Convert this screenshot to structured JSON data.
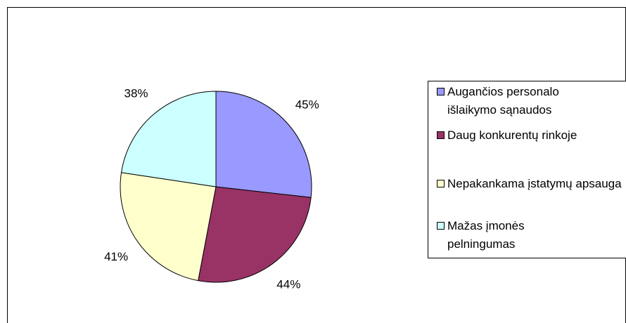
{
  "chart_data": {
    "type": "pie",
    "categories": [
      "Augančios personalo išlaikymo sąnaudos",
      "Daug konkurentų rinkoje",
      "Nepakankama įstatymų apsauga",
      "Mažas įmonės pelningumas"
    ],
    "values": [
      45,
      44,
      41,
      38
    ],
    "value_labels": [
      "45%",
      "44%",
      "41%",
      "38%"
    ],
    "colors": [
      "#9999ff",
      "#993366",
      "#ffffcc",
      "#ccffff"
    ],
    "legend": "right"
  }
}
